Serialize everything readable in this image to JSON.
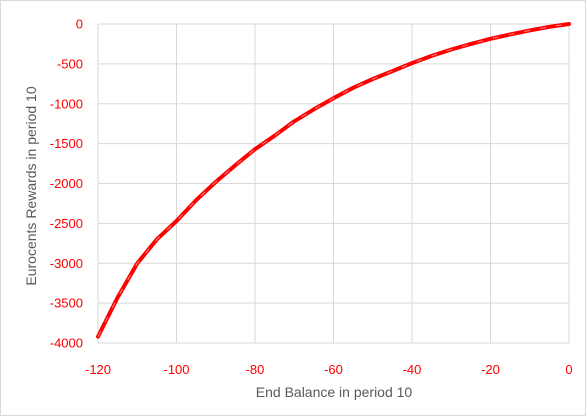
{
  "chart_data": {
    "type": "line",
    "title": "",
    "xlabel": "End Balance in period 10",
    "ylabel": "Eurocents Rewards in period 10",
    "xlim": [
      -120,
      0
    ],
    "ylim": [
      -4000,
      0
    ],
    "grid": true,
    "legend": "none",
    "x_ticks": [
      "-120",
      "-100",
      "-80",
      "-60",
      "-40",
      "-20",
      "0"
    ],
    "y_ticks": [
      "0",
      "-500",
      "-1000",
      "-1500",
      "-2000",
      "-2500",
      "-3000",
      "-3500",
      "-4000"
    ],
    "x_tick_values": [
      -120,
      -100,
      -80,
      -60,
      -40,
      -20,
      0
    ],
    "y_tick_values": [
      0,
      -500,
      -1000,
      -1500,
      -2000,
      -2500,
      -3000,
      -3500,
      -4000
    ],
    "series": [
      {
        "color": "#ff0000",
        "x": [
          -120,
          -115,
          -110,
          -105,
          -100,
          -95,
          -90,
          -85,
          -80,
          -75,
          -70,
          -65,
          -60,
          -55,
          -50,
          -45,
          -40,
          -35,
          -30,
          -25,
          -20,
          -15,
          -10,
          -5,
          0
        ],
        "y": [
          -3920,
          -3430,
          -3000,
          -2700,
          -2470,
          -2210,
          -1980,
          -1770,
          -1570,
          -1400,
          -1220,
          -1070,
          -930,
          -800,
          -690,
          -590,
          -490,
          -400,
          -320,
          -250,
          -185,
          -130,
          -80,
          -35,
          0
        ]
      }
    ]
  },
  "colors": {
    "series": "#ff0000",
    "tick_labels": "#ff0000",
    "axis_titles": "#595959",
    "grid": "#d9d9d9"
  }
}
